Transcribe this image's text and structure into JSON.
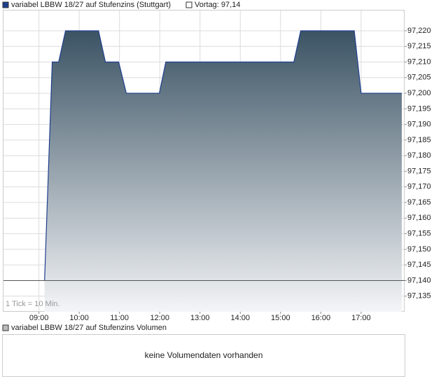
{
  "chart_data": {
    "type": "area",
    "series": [
      {
        "name": "variabel LBBW 18/27 auf Stufenzins (Stuttgart)",
        "color": "#1f3f8f",
        "x": [
          9.14,
          9.33,
          9.49,
          9.66,
          10.48,
          10.65,
          10.98,
          11.17,
          11.99,
          12.15,
          15.33,
          15.5,
          16.83,
          17.0,
          18.01
        ],
        "values": [
          97.14,
          97.21,
          97.21,
          97.22,
          97.22,
          97.21,
          97.21,
          97.2,
          97.2,
          97.21,
          97.21,
          97.22,
          97.22,
          97.2,
          97.2
        ]
      }
    ],
    "reference": {
      "name": "Vortag: 97,14",
      "value": 97.14
    },
    "annotation": "1 Tick = 10 Min.",
    "xlim": [
      8.12,
      18.08
    ],
    "xticks": [
      {
        "value": 9,
        "label": "09:00"
      },
      {
        "value": 10,
        "label": "10:00"
      },
      {
        "value": 11,
        "label": "11:00"
      },
      {
        "value": 12,
        "label": "12:00"
      },
      {
        "value": 13,
        "label": "13:00"
      },
      {
        "value": 14,
        "label": "14:00"
      },
      {
        "value": 15,
        "label": "15:00"
      },
      {
        "value": 16,
        "label": "16:00"
      },
      {
        "value": 17,
        "label": "17:00"
      }
    ],
    "ylim": [
      97.13,
      97.2265
    ],
    "yticks": [
      {
        "value": 97.135,
        "label": "97,135"
      },
      {
        "value": 97.14,
        "label": "97,140"
      },
      {
        "value": 97.145,
        "label": "97,145"
      },
      {
        "value": 97.15,
        "label": "97,150"
      },
      {
        "value": 97.155,
        "label": "97,155"
      },
      {
        "value": 97.16,
        "label": "97,160"
      },
      {
        "value": 97.165,
        "label": "97,165"
      },
      {
        "value": 97.17,
        "label": "97,170"
      },
      {
        "value": 97.175,
        "label": "97,175"
      },
      {
        "value": 97.18,
        "label": "97,180"
      },
      {
        "value": 97.185,
        "label": "97,185"
      },
      {
        "value": 97.19,
        "label": "97,190"
      },
      {
        "value": 97.195,
        "label": "97,195"
      },
      {
        "value": 97.2,
        "label": "97,200"
      },
      {
        "value": 97.205,
        "label": "97,205"
      },
      {
        "value": 97.21,
        "label": "97,210"
      },
      {
        "value": 97.215,
        "label": "97,215"
      },
      {
        "value": 97.22,
        "label": "97,220"
      }
    ],
    "grid": true
  },
  "volume_panel": {
    "title": "variabel LBBW 18/27 auf Stufenzins Volumen",
    "message": "keine Volumendaten vorhanden"
  }
}
